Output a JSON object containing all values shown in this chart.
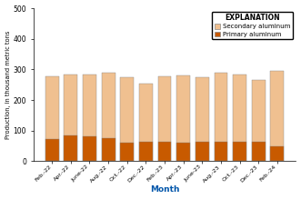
{
  "months": [
    "Feb.-22",
    "Apr.-22",
    "June-22",
    "Aug.-22",
    "Oct.-22",
    "Dec.-22",
    "Feb.-23",
    "Apr.-23",
    "June-23",
    "Aug.-23",
    "Oct.-23",
    "Dec.-23",
    "Feb.-24"
  ],
  "secondary_aluminum": [
    278,
    283,
    282,
    288,
    275,
    253,
    278,
    280,
    275,
    288,
    283,
    265,
    295
  ],
  "primary_aluminum": [
    72,
    83,
    80,
    75,
    60,
    62,
    62,
    60,
    63,
    63,
    62,
    62,
    50
  ],
  "secondary_color": "#f0c090",
  "primary_color": "#c85a00",
  "ylabel": "Production, in thousand metric tons",
  "xlabel": "Month",
  "legend_title": "EXPLANATION",
  "legend_secondary": "Secondary aluminum",
  "legend_primary": "Primary aluminum",
  "ylim": [
    0,
    500
  ],
  "yticks": [
    0,
    100,
    200,
    300,
    400,
    500
  ],
  "background_color": "#ffffff"
}
